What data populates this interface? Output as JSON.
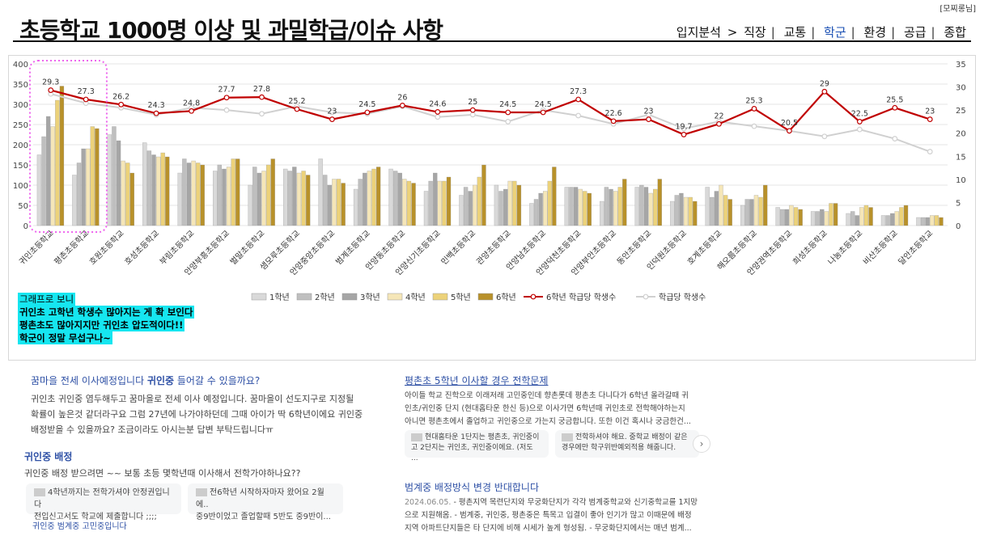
{
  "author": "[모찌롱님]",
  "page_title": "초등학교 1000명 이상 및 과밀학급/이슈 사항",
  "nav": {
    "prefix": "입지분석",
    "arrow": ">",
    "items": [
      {
        "label": "직장",
        "active": false
      },
      {
        "label": "교통",
        "active": false
      },
      {
        "label": "학군",
        "active": true
      },
      {
        "label": "환경",
        "active": false
      },
      {
        "label": "공급",
        "active": false
      },
      {
        "label": "종합",
        "active": false
      }
    ]
  },
  "chart_data": {
    "type": "bar+line",
    "categories": [
      "귀인초등학교",
      "평촌초등학교",
      "호원초등학교",
      "호성초등학교",
      "부림초등학교",
      "안양부흥초등학교",
      "벌말초등학교",
      "샘모루초등학교",
      "안양중앙초등학교",
      "범계초등학교",
      "안양동초등학교",
      "안양신기초등학교",
      "민백초등학교",
      "관양초등학교",
      "안양남초등학교",
      "안양덕천초등학교",
      "안양부안초등학교",
      "동안초등학교",
      "인덕원초등학교",
      "호계초등학교",
      "해오름초등학교",
      "안양권역초등학교",
      "희성초등학교",
      "나눔초등학교",
      "비산초등학교",
      "달안초등학교"
    ],
    "bar_series": [
      {
        "name": "1학년",
        "color": "#d9d9d9",
        "values": [
          175,
          125,
          225,
          205,
          130,
          135,
          100,
          140,
          165,
          90,
          140,
          85,
          75,
          100,
          55,
          95,
          60,
          95,
          60,
          95,
          50,
          45,
          35,
          30,
          25,
          20
        ]
      },
      {
        "name": "2학년",
        "color": "#bfbfbf",
        "values": [
          220,
          155,
          245,
          185,
          165,
          150,
          145,
          135,
          125,
          115,
          135,
          110,
          95,
          85,
          65,
          95,
          95,
          100,
          75,
          70,
          65,
          40,
          35,
          35,
          25,
          20
        ]
      },
      {
        "name": "3학년",
        "color": "#a6a6a6",
        "values": [
          270,
          190,
          210,
          175,
          155,
          140,
          130,
          145,
          100,
          130,
          130,
          130,
          85,
          90,
          80,
          95,
          90,
          95,
          80,
          85,
          65,
          40,
          40,
          25,
          30,
          20
        ]
      },
      {
        "name": "4학년",
        "color": "#f5e6b8",
        "values": [
          245,
          190,
          160,
          170,
          160,
          145,
          135,
          130,
          115,
          135,
          115,
          110,
          100,
          110,
          85,
          90,
          85,
          80,
          70,
          100,
          75,
          50,
          35,
          45,
          35,
          25
        ]
      },
      {
        "name": "5학년",
        "color": "#ecd27a",
        "values": [
          310,
          245,
          155,
          180,
          155,
          165,
          150,
          135,
          115,
          140,
          110,
          110,
          120,
          110,
          110,
          85,
          95,
          90,
          70,
          75,
          70,
          45,
          55,
          50,
          45,
          25
        ]
      },
      {
        "name": "6학년",
        "color": "#b8912a",
        "values": [
          345,
          240,
          130,
          170,
          150,
          165,
          165,
          125,
          105,
          145,
          105,
          120,
          150,
          100,
          145,
          80,
          115,
          115,
          60,
          65,
          100,
          40,
          55,
          45,
          50,
          20
        ]
      }
    ],
    "line_series": [
      {
        "name": "6학년 학급당 학생수",
        "color": "#c00000",
        "values": [
          29.3,
          27.3,
          26.2,
          24.3,
          24.8,
          27.7,
          27.8,
          25.2,
          23,
          24.5,
          26,
          24.6,
          25,
          24.5,
          24.5,
          27.3,
          22.6,
          23,
          19.7,
          22,
          25.3,
          20.5,
          29,
          22.5,
          25.5,
          23
        ],
        "labels": [
          "29.3",
          "27.3",
          "26.2",
          "24.3",
          "24.8",
          "27.7",
          "27.8",
          "25.2",
          "23",
          "24.5",
          "26",
          "24.6",
          "25",
          "24.5",
          "24.5",
          "27.3",
          "22.6",
          "23",
          "19.7",
          "22",
          "25.3",
          "20.5",
          "29",
          "22.5",
          "25.5",
          "23"
        ]
      },
      {
        "name": "학급당 학생수",
        "color": "#d0d0d0",
        "values": [
          28.5,
          26.5,
          25.5,
          24,
          25.5,
          25,
          24.2,
          25.8,
          24.5,
          24.2,
          25.8,
          23.5,
          24,
          22.5,
          25,
          23.8,
          22,
          24,
          21,
          22.5,
          21.5,
          20.5,
          19.3,
          20.8,
          18.8,
          16
        ]
      }
    ],
    "y_left": {
      "min": 0,
      "max": 400,
      "ticks": [
        0,
        50,
        100,
        150,
        200,
        250,
        300,
        350,
        400
      ]
    },
    "y_right": {
      "min": 0,
      "max": 35,
      "ticks": [
        0,
        5,
        10,
        15,
        20,
        25,
        30,
        35
      ]
    },
    "legend": [
      "1학년",
      "2학년",
      "3학년",
      "4학년",
      "5학년",
      "6학년",
      "6학년 학급당 학생수",
      "학급당 학생수"
    ],
    "legend_position": "bottom",
    "highlight": "귀인초·평촌초 (dotted pink box)"
  },
  "note": [
    "그래프로 보니",
    "귀인초 고학년 학생수 많아지는 게 확 보인다",
    "평촌초도 많아지지만 귀인초 압도적이다!!",
    "학군이 정말 무섭구나~"
  ],
  "results": {
    "left_1": {
      "title_html": [
        "꿈마을 전세 이사예정입니다 ",
        "귀인중",
        " 들어갈 수 있을까요?"
      ],
      "snippet": [
        "귀인초 귀인중 염두해두고 꿈마을로 전세 이사 예정입니다. 꿈마을이 선도지구로 지정될",
        "확률이 높은것 같더라구요 그럼 27년에 나가야하던데 그때 아이가 딱 6학년이에요 귀인중",
        "배정받을 수 있을까요? 조금이라도 아시는분 답변 부탁드립니다ㅠ"
      ]
    },
    "left_2": {
      "title": "귀인중 배정",
      "snippet": "귀인중 배정 받으려면 ~~ 보통 초등 몇학년때 이사해서 전학가야하나요??",
      "card1": [
        "4학년까지는 전학가셔야 안정권입니다",
        "전입신고서도 학교에 제출합니다 ;;;;"
      ],
      "card2": [
        "전6학년 시작하자마자 왔어요 2월에..",
        "중9반이었고 졸업할때 5반도 중9반이..."
      ],
      "link": "귀인중 범계중 고민중입니다"
    },
    "right_1": {
      "title": "평촌초 5학년 이사할 경우 전학문제",
      "snippet": [
        "아이들 학교 진학으로 이래저래 고민중인데 향촌롯데 평촌초 다니다가 6학년 올라갈때 귀",
        "인초/귀인중 단지 (현대홈타운 한신 등)으로 이사가면 6학년때 귀인초로 전학해야하는지",
        "아니면 평촌초에서 졸업하고 귀인중으로 가는지 궁금합니다. 또한 이건 혹시나 궁금한건..."
      ],
      "card1": [
        "현대홈타운 1단지는 평촌초, 귀인중이",
        "고 2단지는 귀인초, 귀인중이에요. (저도 ..."
      ],
      "card2": [
        "전학하셔야 해요. 중학교 배정이 같은",
        "경우에만 학구위반예외적용 해줍니다."
      ],
      "arrow": "›"
    },
    "right_2": {
      "title": "범계중 배정방식 변경 반대합니다",
      "date": "2024.06.05.",
      "snippet": [
        "- 평촌지역 목련단지와 무궁화단지가 각각 범계중학교와 신기중학교를 1지망",
        "으로 지원해옴. - 범계중, 귀인중, 평촌중은 특목고 입결이 좋아 인기가 많고 이때문에 배정",
        "지역 아파트단지들은 타 단지에 비해 시세가 높게 형성됨. - 무궁화단지에서는 매년 범계..."
      ]
    }
  }
}
